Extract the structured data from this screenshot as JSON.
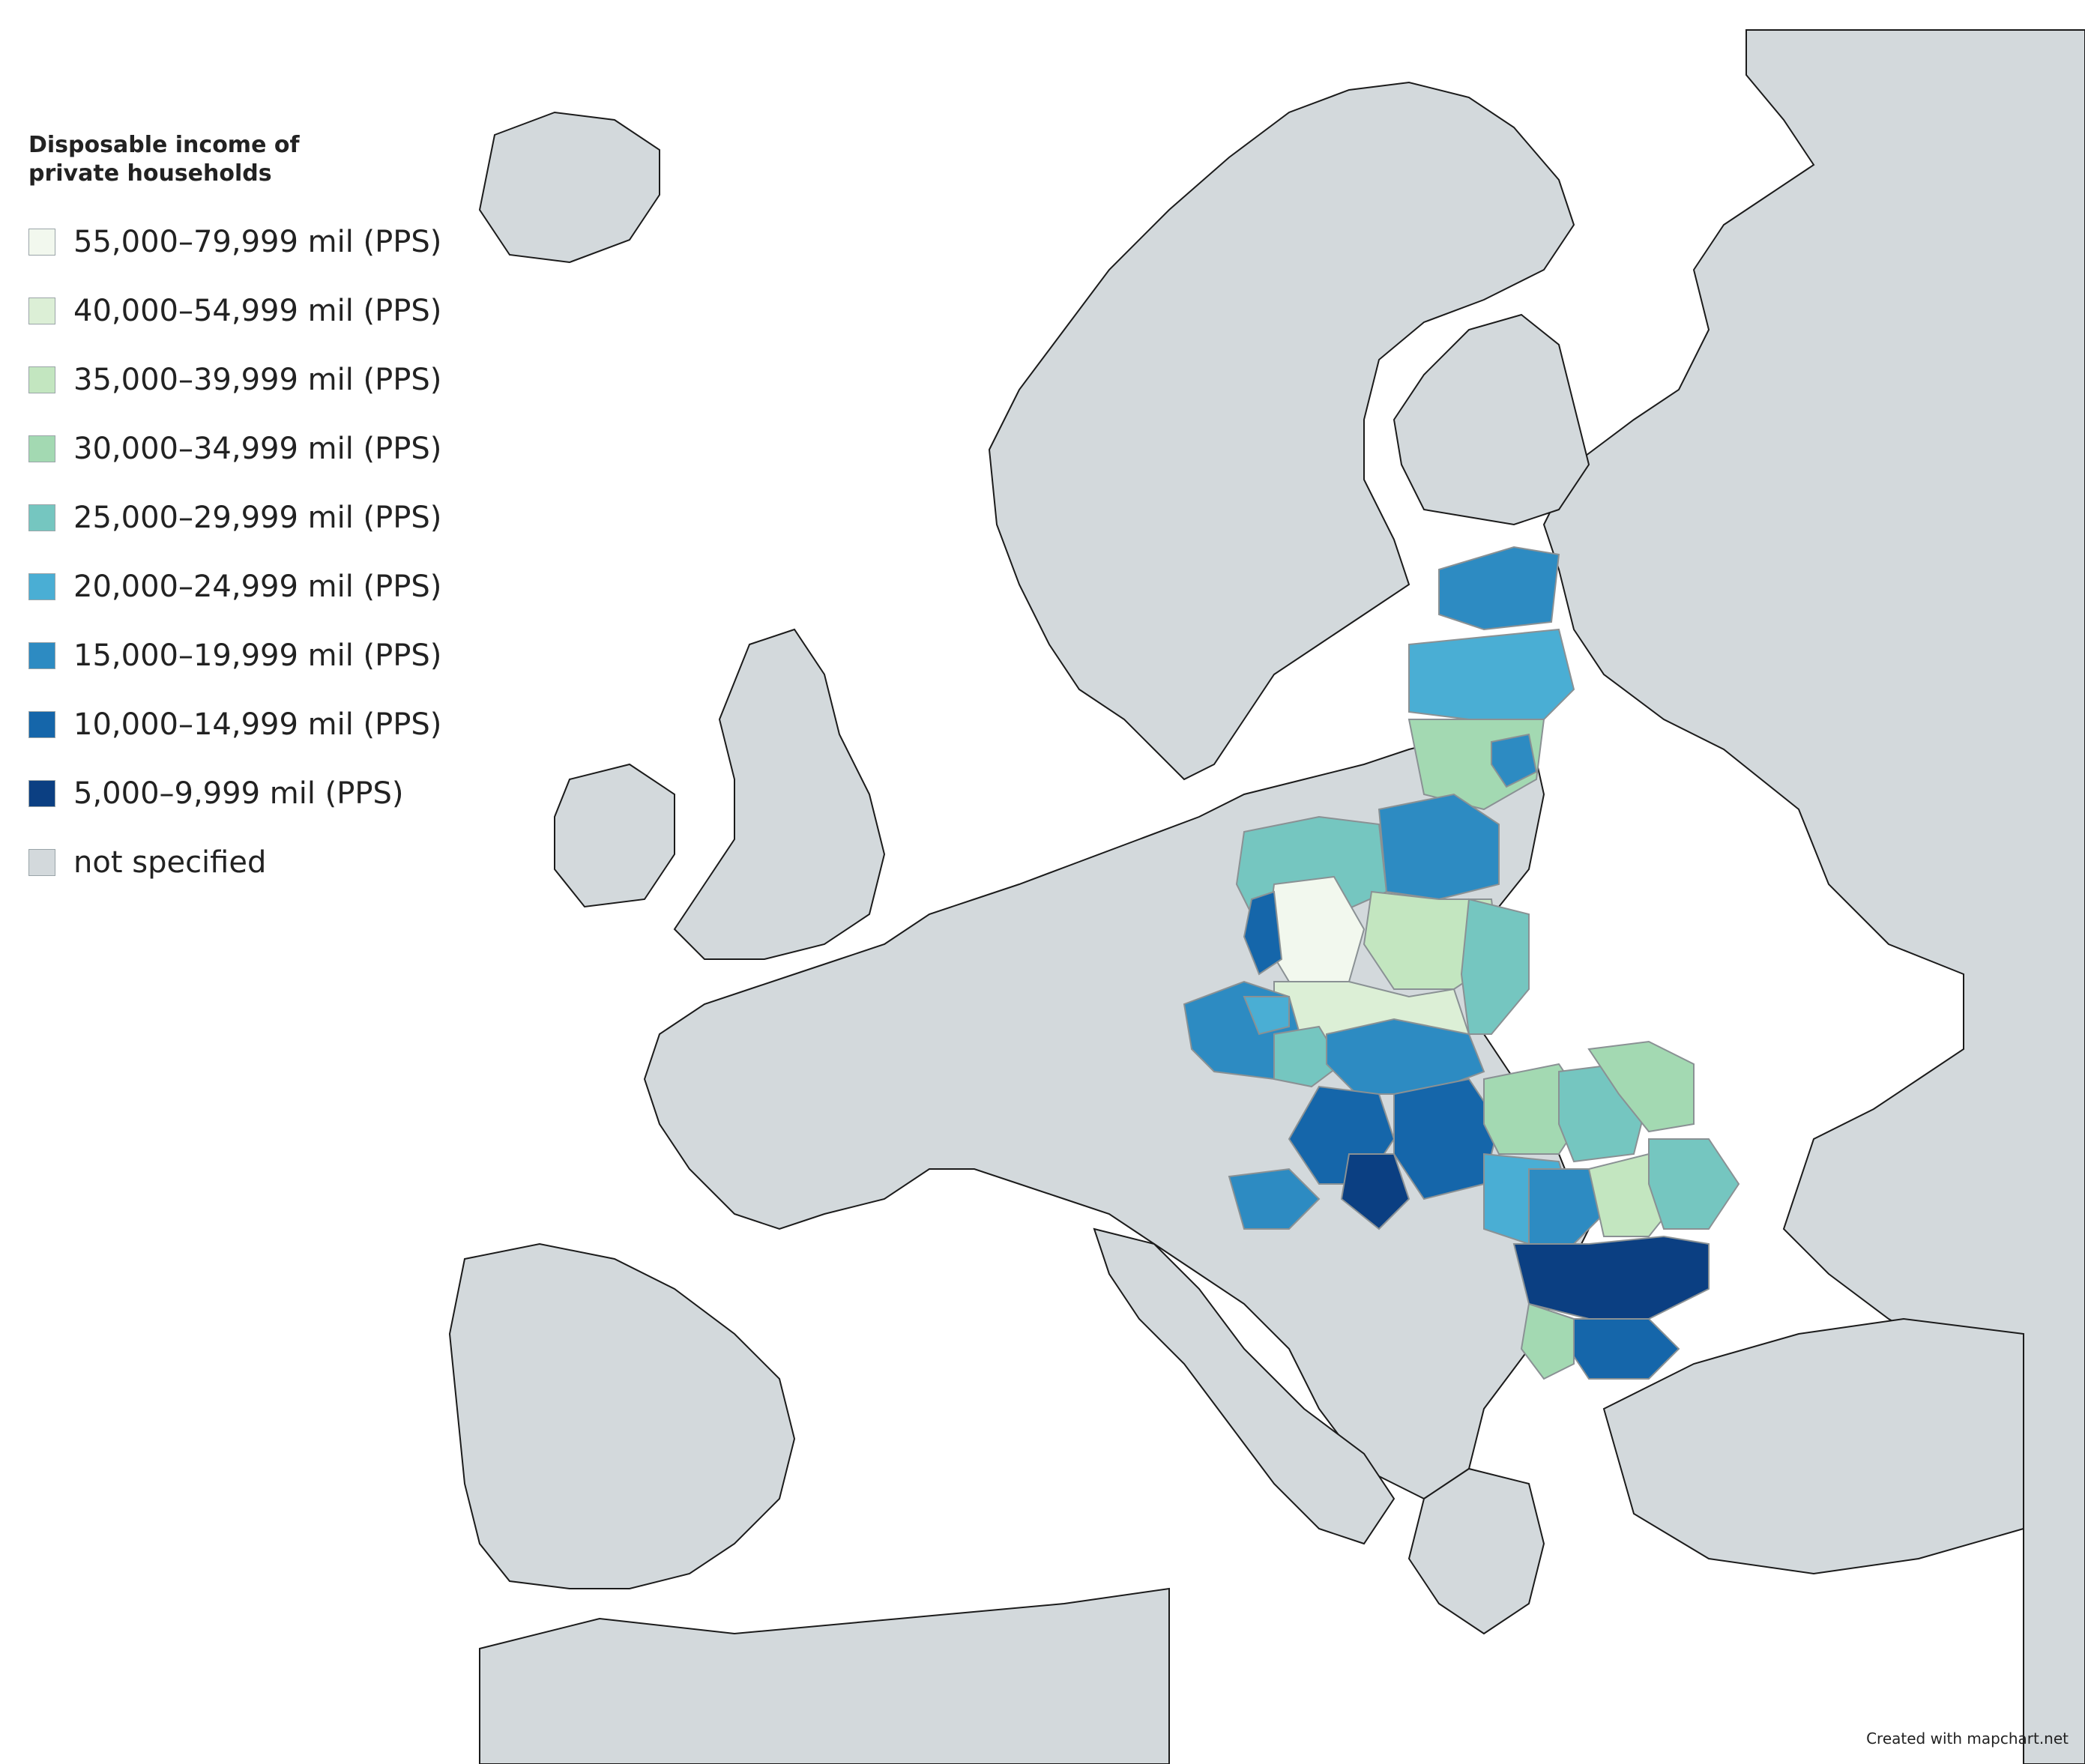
{
  "legend": {
    "title_line1": "Disposable income of",
    "title_line2": "private households",
    "items": [
      {
        "label": "55,000–79,999 mil (PPS)",
        "color": "#f2f8ee"
      },
      {
        "label": "40,000–54,999 mil (PPS)",
        "color": "#dcefd6"
      },
      {
        "label": "35,000–39,999 mil (PPS)",
        "color": "#c3e6c0"
      },
      {
        "label": "30,000–34,999 mil (PPS)",
        "color": "#a3d9b2"
      },
      {
        "label": "25,000–29,999 mil (PPS)",
        "color": "#75c6c0"
      },
      {
        "label": "20,000–24,999 mil (PPS)",
        "color": "#4aaed4"
      },
      {
        "label": "15,000–19,999 mil (PPS)",
        "color": "#2d8bc2"
      },
      {
        "label": "10,000–14,999 mil (PPS)",
        "color": "#1566aa"
      },
      {
        "label": "5,000–9,999 mil (PPS)",
        "color": "#0b3f82"
      },
      {
        "label": "not specified",
        "color": "#d3d9dc"
      }
    ]
  },
  "credit": "Created with mapchart.net",
  "colors": {
    "background": "#ffffff",
    "land": "#d3d9dc",
    "border": "#8a9194",
    "coast": "#1b1b1b"
  }
}
